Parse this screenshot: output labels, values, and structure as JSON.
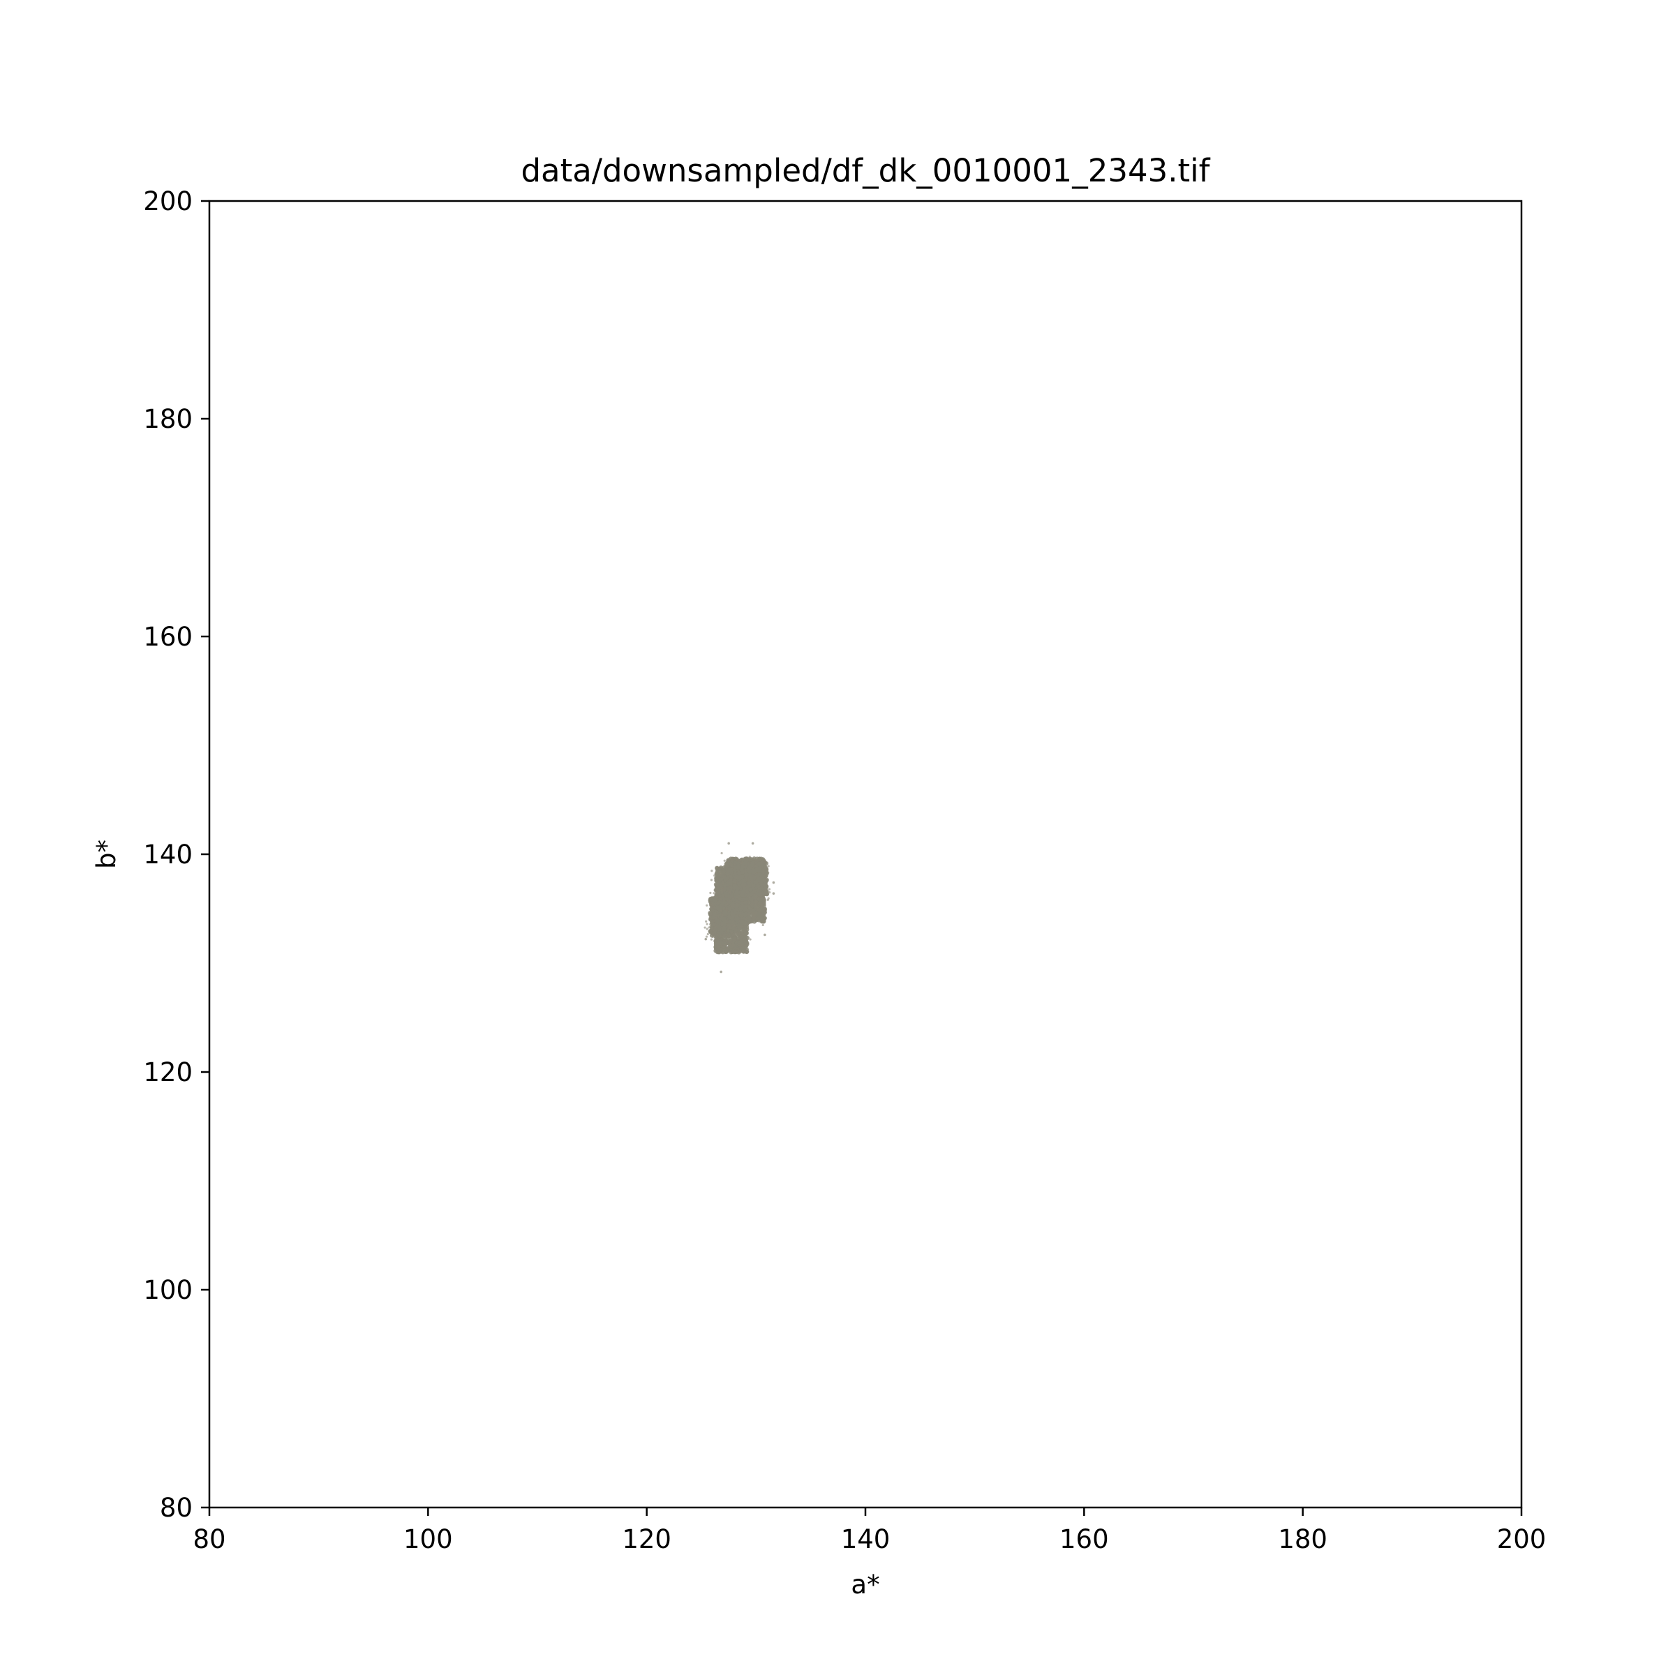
{
  "chart_data": {
    "type": "scatter",
    "title": "data/downsampled/df_dk_0010001_2343.tif",
    "xlabel": "a*",
    "ylabel": "b*",
    "xlim": [
      80,
      200
    ],
    "ylim": [
      80,
      200
    ],
    "xticks": [
      80,
      100,
      120,
      140,
      160,
      180,
      200
    ],
    "yticks": [
      80,
      100,
      120,
      140,
      160,
      180,
      200
    ],
    "grid": false,
    "legend": "none",
    "point_color": "#8a8778",
    "cluster": {
      "core_blocks": [
        {
          "a_range": [
            126.3,
            129.2
          ],
          "b_range": [
            131.0,
            138.8
          ]
        },
        {
          "a_range": [
            127.2,
            130.8
          ],
          "b_range": [
            133.8,
            139.6
          ]
        },
        {
          "a_range": [
            128.0,
            131.0
          ],
          "b_range": [
            136.2,
            139.2
          ]
        },
        {
          "a_range": [
            125.8,
            127.2
          ],
          "b_range": [
            132.5,
            136.0
          ]
        }
      ],
      "outliers": [
        {
          "a": 126.8,
          "b": 129.2
        },
        {
          "a": 127.5,
          "b": 141.0
        },
        {
          "a": 129.7,
          "b": 141.0
        },
        {
          "a": 131.6,
          "b": 137.4
        },
        {
          "a": 131.6,
          "b": 136.4
        },
        {
          "a": 130.8,
          "b": 132.6
        },
        {
          "a": 125.4,
          "b": 132.2
        }
      ]
    }
  }
}
